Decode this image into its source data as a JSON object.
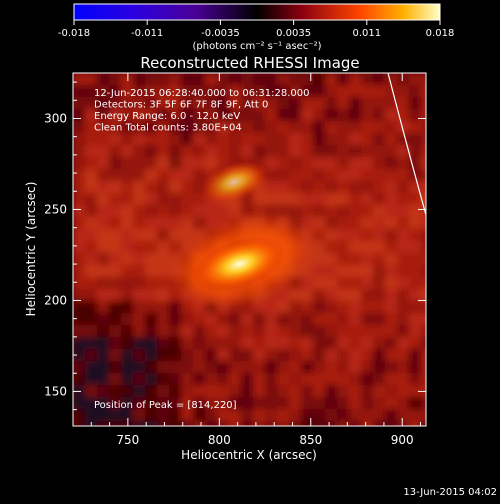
{
  "chart_data": {
    "type": "heatmap",
    "title": "Reconstructed RHESSI Image",
    "xlabel": "Heliocentric X (arcsec)",
    "ylabel": "Heliocentric Y (arcsec)",
    "xlim": [
      720,
      913
    ],
    "ylim": [
      131,
      325
    ],
    "x_ticks": [
      750,
      800,
      850,
      900
    ],
    "y_ticks": [
      150,
      200,
      250,
      300
    ],
    "colorbar": {
      "range": [
        -0.018,
        0.018
      ],
      "ticks": [
        "-0.018",
        "-0.011",
        "-0.0035",
        "0.0035",
        "0.011",
        "0.018"
      ],
      "unit_label": "(photons cm⁻² s⁻¹ asec⁻²)"
    },
    "sources": [
      {
        "x": 811,
        "y": 220,
        "relative_intensity": 1.0
      },
      {
        "x": 808,
        "y": 265,
        "relative_intensity": 0.55
      }
    ],
    "annotations": [
      "12-Jun-2015 06:28:40.000 to 06:31:28.000",
      "Detectors: 3F 5F 6F 7F 8F 9F, Att 0",
      "Energy Range: 6.0 - 12.0 keV",
      "Clean     Total counts: 3.80E+04",
      "Position of Peak = [814,220]"
    ],
    "footer": "13-Jun-2015 04:02"
  }
}
